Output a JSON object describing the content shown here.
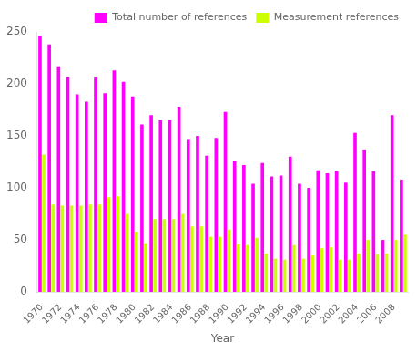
{
  "chart_data": {
    "type": "bar",
    "xlabel": "Year",
    "categories": [
      "1970",
      null,
      "1972",
      null,
      "1974",
      null,
      "1976",
      null,
      "1978",
      null,
      "1980",
      null,
      "1982",
      null,
      "1984",
      null,
      "1986",
      null,
      "1988",
      null,
      "1990",
      null,
      "1992",
      null,
      "1994",
      null,
      "1996",
      null,
      "1998",
      null,
      "2000",
      null,
      "2002",
      null,
      "2004",
      null,
      "2006",
      null,
      "2008",
      null
    ],
    "series": [
      {
        "name": "Total number of references",
        "color": "#ff00ff",
        "values": [
          246,
          238,
          217,
          207,
          190,
          183,
          207,
          191,
          213,
          202,
          188,
          161,
          170,
          165,
          165,
          178,
          147,
          150,
          131,
          148,
          173,
          126,
          122,
          104,
          124,
          111,
          112,
          130,
          104,
          100,
          117,
          114,
          116,
          105,
          153,
          137,
          116,
          50,
          170,
          108
        ]
      },
      {
        "name": "Measurement references",
        "color": "#ccff00",
        "values": [
          132,
          84,
          83,
          83,
          83,
          84,
          84,
          91,
          92,
          75,
          58,
          47,
          70,
          70,
          70,
          75,
          63,
          63,
          53,
          53,
          60,
          46,
          45,
          52,
          37,
          32,
          31,
          45,
          32,
          35,
          42,
          43,
          31,
          31,
          37,
          50,
          36,
          37,
          50,
          55
        ]
      }
    ],
    "ylim": [
      0,
      250
    ],
    "yticks": [
      0,
      50,
      100,
      150,
      200,
      250
    ],
    "grid": false,
    "legend": "upper right"
  }
}
